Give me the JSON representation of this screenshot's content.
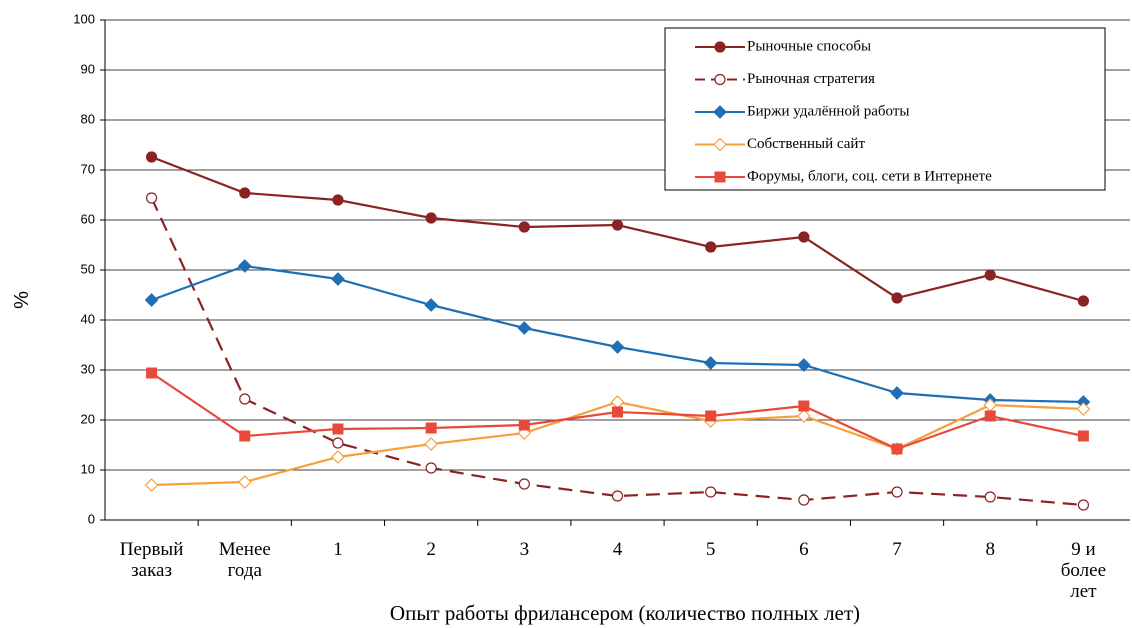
{
  "chart_data": {
    "type": "line",
    "ylabel": "%",
    "xlabel": "Опыт работы фрилансером (количество полных лет)",
    "categories": [
      "Первый\nзаказ",
      "Менее\nгода",
      "1",
      "2",
      "3",
      "4",
      "5",
      "6",
      "7",
      "8",
      "9 и\nболее\nлет"
    ],
    "series": [
      {
        "name": "Рыночные способы",
        "color": "#8b2323",
        "marker": "circle",
        "dashed": false,
        "values": [
          72.6,
          65.4,
          64,
          60.4,
          58.6,
          59,
          54.6,
          56.6,
          44.4,
          49,
          43.8
        ]
      },
      {
        "name": "Рыночная стратегия",
        "color": "#8b2323",
        "marker": "open-circle",
        "dashed": true,
        "values": [
          64.4,
          24.2,
          15.4,
          10.4,
          7.2,
          4.8,
          5.6,
          4,
          5.6,
          4.6,
          3
        ]
      },
      {
        "name": "Биржи удалённой работы",
        "color": "#1f6fb5",
        "marker": "diamond",
        "dashed": false,
        "values": [
          44,
          50.8,
          48.2,
          43,
          38.4,
          34.6,
          31.4,
          31,
          25.4,
          24,
          23.6
        ]
      },
      {
        "name": "Собственный сайт",
        "color": "#f5a03c",
        "marker": "open-diamond",
        "dashed": false,
        "values": [
          7,
          7.6,
          12.6,
          15.2,
          17.4,
          23.6,
          19.8,
          20.8,
          14.2,
          23,
          22.2
        ]
      },
      {
        "name": "Форумы, блоги, соц. сети в Интернете",
        "color": "#e84a3a",
        "marker": "square",
        "dashed": false,
        "values": [
          29.4,
          16.8,
          18.2,
          18.4,
          19,
          21.6,
          20.8,
          22.8,
          14.2,
          20.8,
          16.8
        ]
      }
    ],
    "ylim": [
      0,
      100
    ],
    "yticks": [
      0,
      10,
      20,
      30,
      40,
      50,
      60,
      70,
      80,
      90,
      100
    ],
    "grid": true,
    "legend": "upper right"
  }
}
